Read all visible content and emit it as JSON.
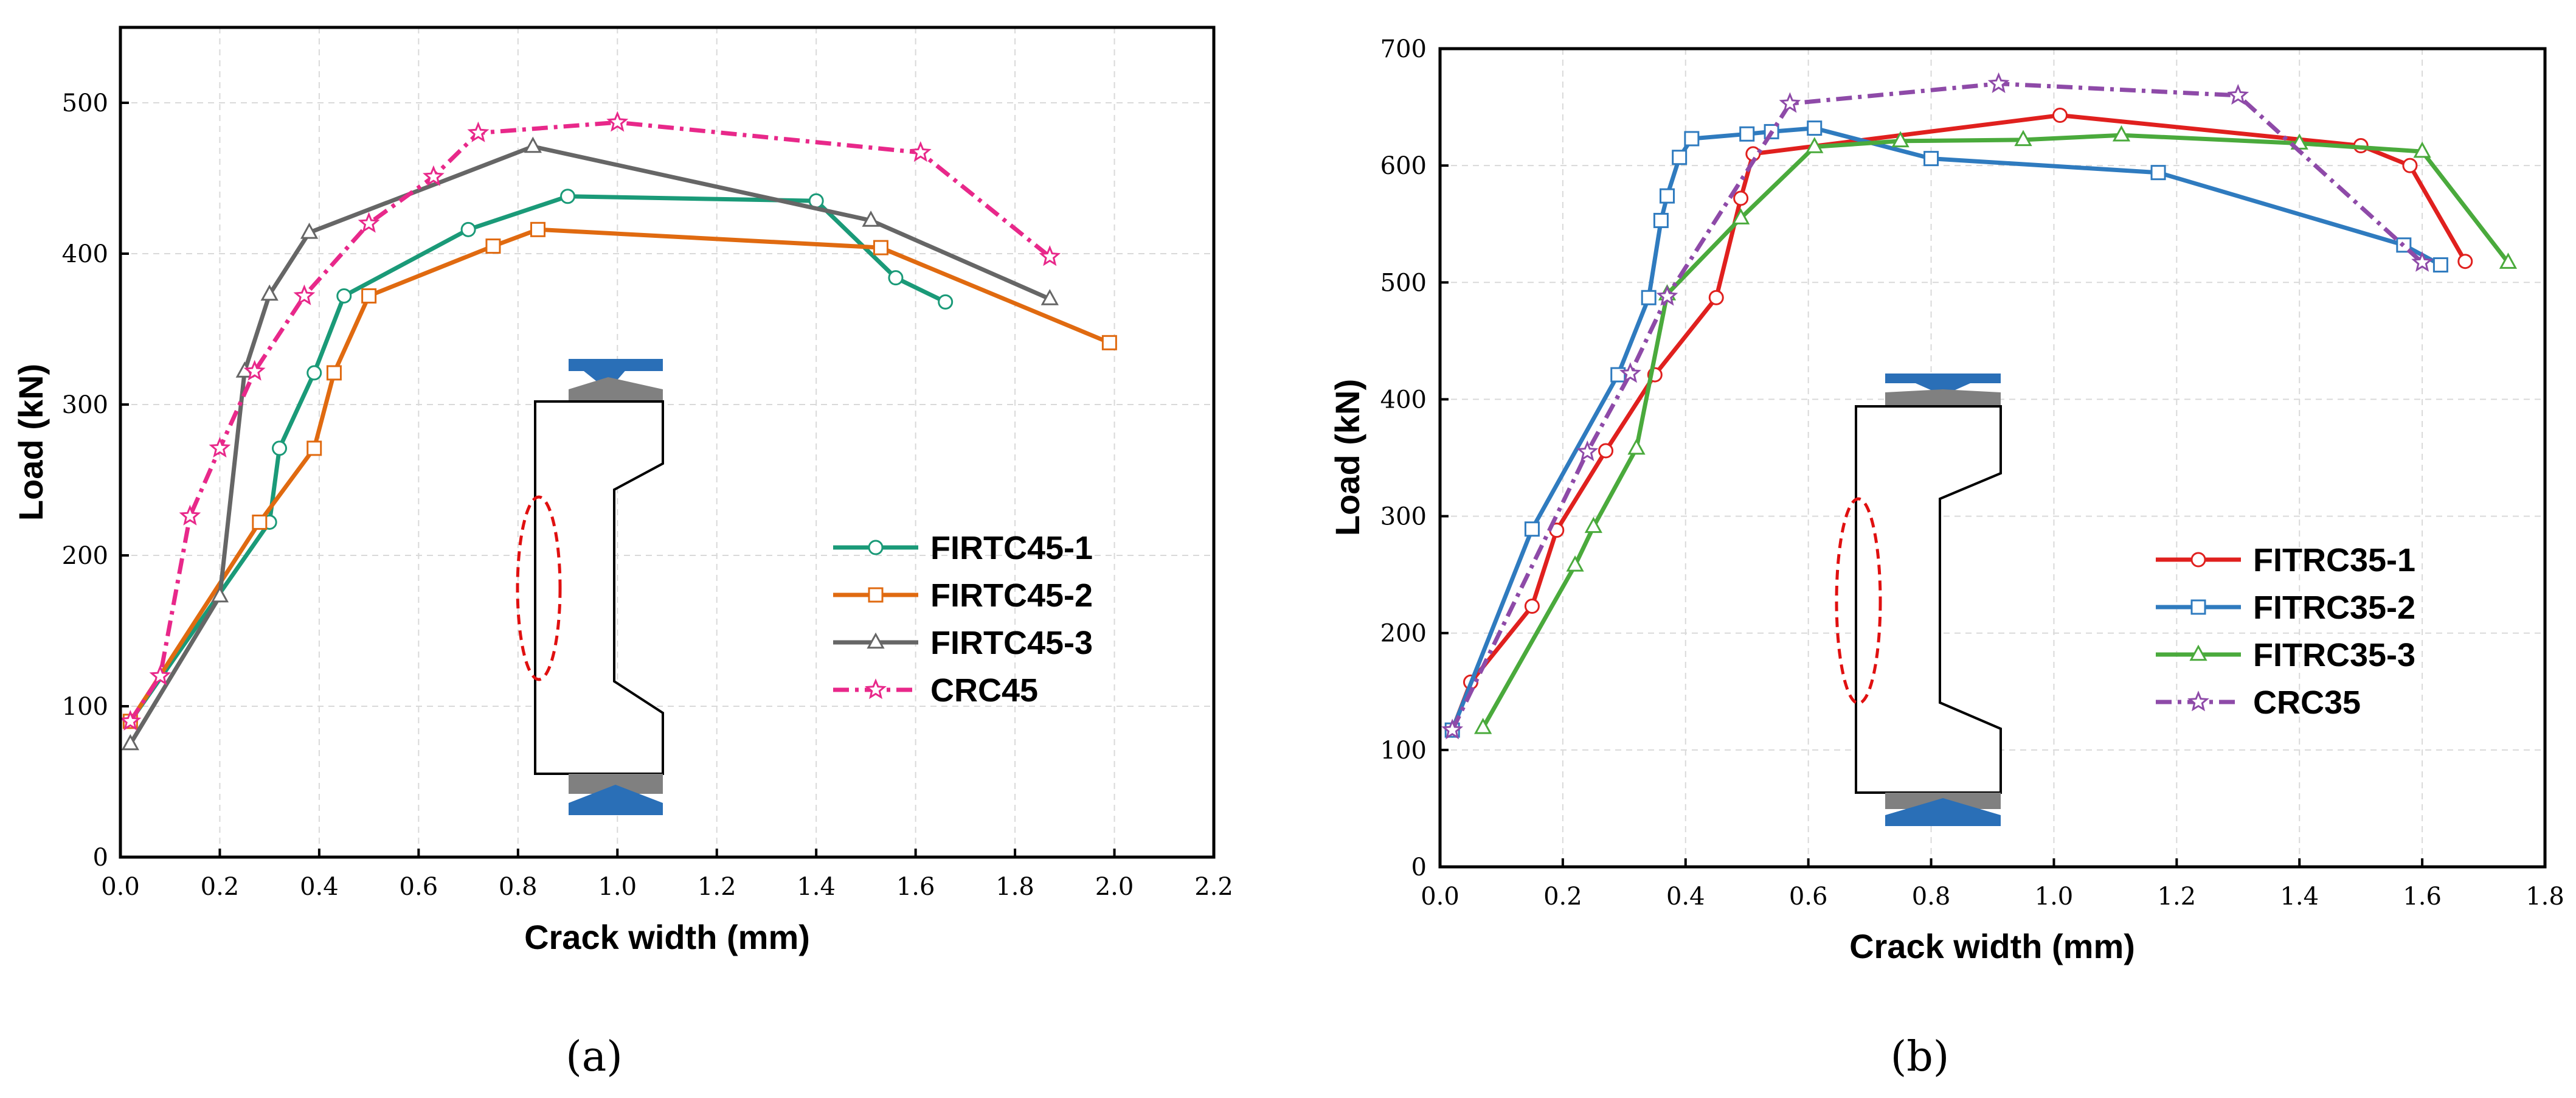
{
  "chart_data": [
    {
      "type": "line",
      "panel_label": "(a)",
      "title": "",
      "xlabel": "Crack width (mm)",
      "ylabel": "Load (kN)",
      "xlim": [
        0.0,
        2.2
      ],
      "ylim": [
        0,
        550
      ],
      "xticks": [
        "0.0",
        "0.2",
        "0.4",
        "0.6",
        "0.8",
        "1.0",
        "1.2",
        "1.4",
        "1.6",
        "1.8",
        "2.0",
        "2.2"
      ],
      "yticks": [
        "0",
        "100",
        "200",
        "300",
        "400",
        "500"
      ],
      "grid": true,
      "legend_position": "lower-right",
      "series": [
        {
          "name": "FIRTC45-1",
          "color": "#1a9a78",
          "marker": "circle",
          "dash": "solid",
          "x": [
            0.02,
            0.3,
            0.32,
            0.39,
            0.45,
            0.7,
            0.9,
            1.4,
            1.56,
            1.66
          ],
          "y": [
            90,
            222,
            271,
            321,
            372,
            416,
            438,
            435,
            384,
            368
          ]
        },
        {
          "name": "FIRTC45-2",
          "color": "#e06a10",
          "marker": "square",
          "dash": "solid",
          "x": [
            0.02,
            0.28,
            0.39,
            0.43,
            0.5,
            0.75,
            0.84,
            1.53,
            1.99
          ],
          "y": [
            90,
            222,
            271,
            321,
            372,
            405,
            416,
            404,
            341
          ]
        },
        {
          "name": "FIRTC45-3",
          "color": "#666666",
          "marker": "triangle",
          "dash": "solid",
          "x": [
            0.02,
            0.2,
            0.25,
            0.3,
            0.38,
            0.83,
            1.51,
            1.87
          ],
          "y": [
            75,
            173,
            322,
            373,
            414,
            471,
            422,
            370
          ]
        },
        {
          "name": "CRC45",
          "color": "#e8288a",
          "marker": "star",
          "dash": "dashdot",
          "x": [
            0.02,
            0.08,
            0.14,
            0.2,
            0.27,
            0.37,
            0.5,
            0.63,
            0.72,
            1.0,
            1.61,
            1.87
          ],
          "y": [
            90,
            120,
            226,
            271,
            322,
            372,
            420,
            451,
            480,
            487,
            467,
            398
          ]
        }
      ]
    },
    {
      "type": "line",
      "panel_label": "(b)",
      "title": "",
      "xlabel": "Crack width (mm)",
      "ylabel": "Load (kN)",
      "xlim": [
        0.0,
        1.8
      ],
      "ylim": [
        0,
        700
      ],
      "xticks": [
        "0.0",
        "0.2",
        "0.4",
        "0.6",
        "0.8",
        "1.0",
        "1.2",
        "1.4",
        "1.6",
        "1.8"
      ],
      "yticks": [
        "0",
        "100",
        "200",
        "300",
        "400",
        "500",
        "600",
        "700"
      ],
      "grid": true,
      "legend_position": "lower-right",
      "series": [
        {
          "name": "FITRC35-1",
          "color": "#e0201e",
          "marker": "circle",
          "dash": "solid",
          "x": [
            0.02,
            0.05,
            0.15,
            0.19,
            0.27,
            0.35,
            0.45,
            0.49,
            0.51,
            1.01,
            1.5,
            1.58,
            1.67
          ],
          "y": [
            117,
            158,
            223,
            288,
            356,
            421,
            487,
            572,
            610,
            643,
            617,
            600,
            518
          ]
        },
        {
          "name": "FITRC35-2",
          "color": "#2f7bbf",
          "marker": "square",
          "dash": "solid",
          "x": [
            0.02,
            0.15,
            0.29,
            0.34,
            0.36,
            0.37,
            0.39,
            0.41,
            0.5,
            0.54,
            0.61,
            0.8,
            1.17,
            1.57,
            1.63
          ],
          "y": [
            117,
            289,
            421,
            487,
            553,
            574,
            607,
            623,
            627,
            629,
            632,
            606,
            594,
            532,
            515
          ]
        },
        {
          "name": "FITRC35-3",
          "color": "#4aaa3c",
          "marker": "triangle",
          "dash": "solid",
          "x": [
            0.07,
            0.22,
            0.25,
            0.32,
            0.37,
            0.49,
            0.61,
            0.75,
            0.95,
            1.11,
            1.4,
            1.6,
            1.74
          ],
          "y": [
            119,
            258,
            291,
            358,
            490,
            555,
            616,
            621,
            622,
            626,
            619,
            612,
            517
          ]
        },
        {
          "name": "CRC35",
          "color": "#8e4aa8",
          "marker": "star",
          "dash": "dashdot",
          "x": [
            0.02,
            0.24,
            0.31,
            0.37,
            0.57,
            0.91,
            1.3,
            1.6
          ],
          "y": [
            117,
            355,
            422,
            488,
            653,
            670,
            660,
            517
          ]
        }
      ]
    }
  ]
}
